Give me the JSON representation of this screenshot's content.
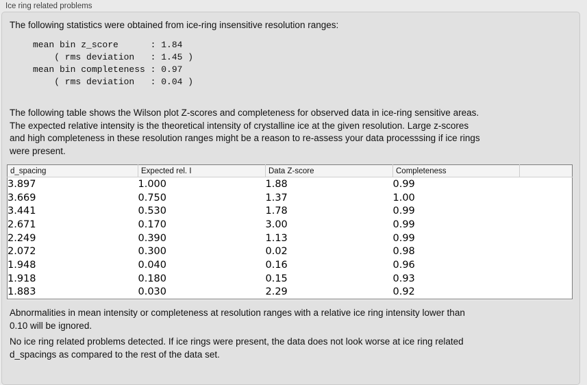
{
  "groupbox": {
    "title": "Ice ring related problems"
  },
  "intro": "The following statistics were obtained from ice-ring insensitive resolution ranges:",
  "stats_block": "mean bin z_score      : 1.84\n    ( rms deviation   : 1.45 )\nmean bin completeness : 0.97\n    ( rms deviation   : 0.04 )",
  "stats": {
    "mean_bin_z_score": "1.84",
    "z_score_rms_deviation": "1.45",
    "mean_bin_completeness": "0.97",
    "completeness_rms_deviation": "0.04"
  },
  "description": "The following table shows the Wilson plot Z-scores and completeness for observed data in ice-ring sensitive areas.\nThe expected relative intensity is the theoretical intensity of crystalline ice at the given resolution. Large z-scores\nand high completeness in these resolution ranges might be a reason to re-assess your data processsing if ice rings\nwere present.",
  "table": {
    "columns": [
      "d_spacing",
      "Expected rel. I",
      "Data Z-score",
      "Completeness"
    ],
    "rows": [
      [
        "3.897",
        "1.000",
        "1.88",
        "0.99"
      ],
      [
        "3.669",
        "0.750",
        "1.37",
        "1.00"
      ],
      [
        "3.441",
        "0.530",
        "1.78",
        "0.99"
      ],
      [
        "2.671",
        "0.170",
        "3.00",
        "0.99"
      ],
      [
        "2.249",
        "0.390",
        "1.13",
        "0.99"
      ],
      [
        "2.072",
        "0.300",
        "0.02",
        "0.98"
      ],
      [
        "1.948",
        "0.040",
        "0.16",
        "0.96"
      ],
      [
        "1.918",
        "0.180",
        "0.15",
        "0.93"
      ],
      [
        "1.883",
        "0.030",
        "2.29",
        "0.92"
      ]
    ]
  },
  "note_ignore": "Abnormalities in mean intensity or completeness at resolution ranges with a relative ice ring intensity lower than\n0.10 will be ignored.",
  "conclusion": "No ice ring related problems detected. If ice rings were present, the data does not look worse at ice ring related\nd_spacings as compared to the rest of the data set.",
  "colors": {
    "window_bg": "#eaeaea",
    "panel_bg": "#e1e1e1",
    "panel_border": "#c9c9c9",
    "table_bg": "#ffffff",
    "table_border": "#7d7d7d",
    "header_bg": "#f4f4f4"
  }
}
